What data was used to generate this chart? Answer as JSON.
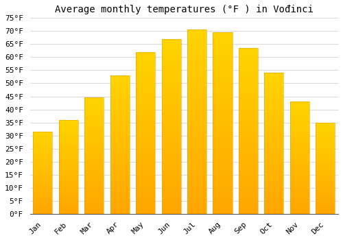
{
  "title": "Average monthly temperatures (°F ) in Vođinci",
  "months": [
    "Jan",
    "Feb",
    "Mar",
    "Apr",
    "May",
    "Jun",
    "Jul",
    "Aug",
    "Sep",
    "Oct",
    "Nov",
    "Dec"
  ],
  "values": [
    31.5,
    36.0,
    44.5,
    53.0,
    62.0,
    67.0,
    70.5,
    69.5,
    63.5,
    54.0,
    43.0,
    35.0
  ],
  "bar_color_bottom": "#FFB733",
  "bar_color_top": "#FFA500",
  "bar_edge_color": "#E8A000",
  "background_color": "#ffffff",
  "grid_color": "#d8d8d8",
  "ylim": [
    0,
    75
  ],
  "yticks": [
    0,
    5,
    10,
    15,
    20,
    25,
    30,
    35,
    40,
    45,
    50,
    55,
    60,
    65,
    70,
    75
  ],
  "title_fontsize": 10,
  "tick_fontsize": 8,
  "font_family": "monospace"
}
